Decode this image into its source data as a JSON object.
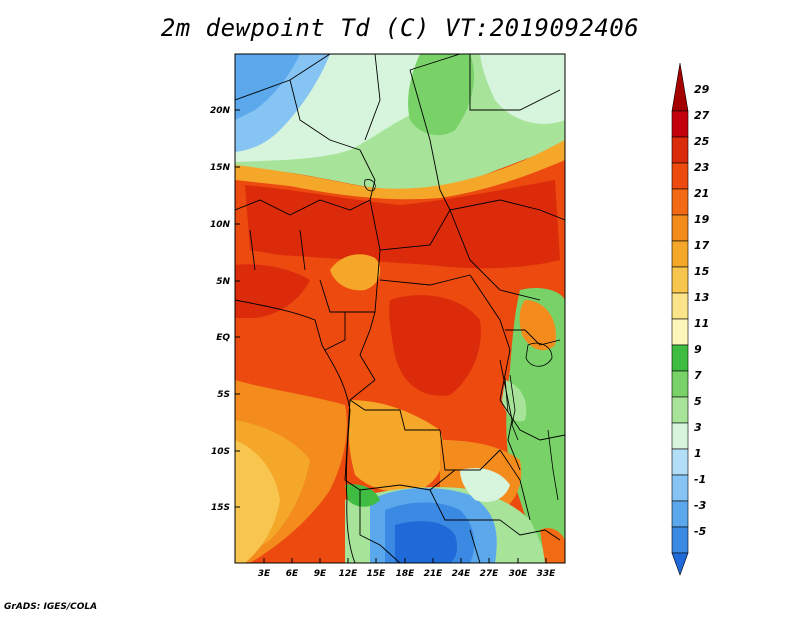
{
  "title": "2m dewpoint Td (C) VT:2019092406",
  "credit": "GrADS: IGES/COLA",
  "map": {
    "lat_ticks": [
      "20N",
      "15N",
      "10N",
      "5N",
      "EQ",
      "5S",
      "10S",
      "15S"
    ],
    "lon_ticks": [
      "3E",
      "6E",
      "9E",
      "12E",
      "15E",
      "18E",
      "21E",
      "24E",
      "27E",
      "30E",
      "33E"
    ]
  },
  "colorbar": {
    "levels": [
      "29",
      "27",
      "25",
      "23",
      "21",
      "19",
      "17",
      "15",
      "13",
      "11",
      "9",
      "7",
      "5",
      "3",
      "1",
      "-1",
      "-3",
      "-5"
    ],
    "colors": [
      "#a50000",
      "#c4000e",
      "#dc2b0a",
      "#ec4a0f",
      "#f26a14",
      "#f38b1d",
      "#f5a72a",
      "#f8c64f",
      "#fbe58a",
      "#fef7bc",
      "#3fbd43",
      "#78d268",
      "#a7e49a",
      "#d7f5dc",
      "#b3def7",
      "#86c4f3",
      "#5ba8ec",
      "#3a8ae3",
      "#1e6ad8"
    ]
  }
}
